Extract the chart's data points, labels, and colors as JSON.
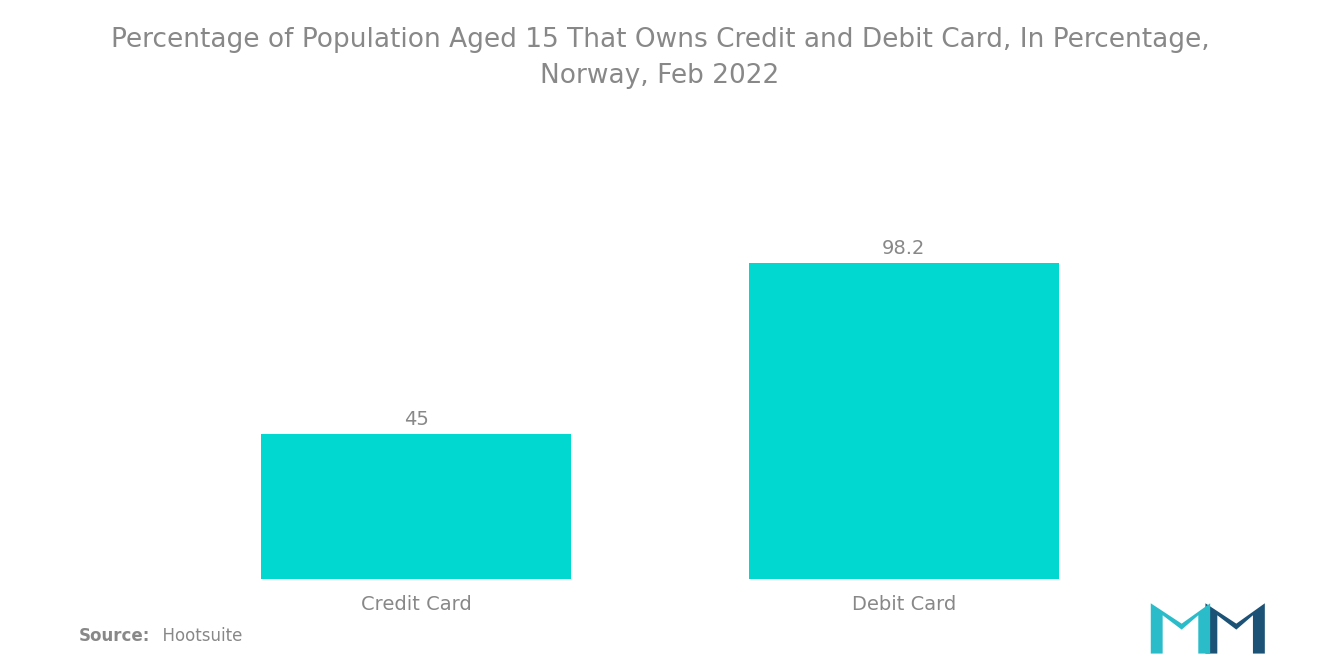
{
  "title": "Percentage of Population Aged 15 That Owns Credit and Debit Card, In Percentage,\nNorway, Feb 2022",
  "categories": [
    "Credit Card",
    "Debit Card"
  ],
  "values": [
    45,
    98.2
  ],
  "bar_color": "#00D8D0",
  "value_labels": [
    "45",
    "98.2"
  ],
  "source_label": "Source:",
  "source_text": "  Hootsuite",
  "title_fontsize": 19,
  "label_fontsize": 14,
  "value_fontsize": 14,
  "source_fontsize": 12,
  "background_color": "#ffffff",
  "text_color": "#888888",
  "bar_width": 0.28,
  "x_positions": [
    0.28,
    0.72
  ],
  "xlim": [
    0.0,
    1.0
  ],
  "ylim": [
    0,
    118
  ]
}
